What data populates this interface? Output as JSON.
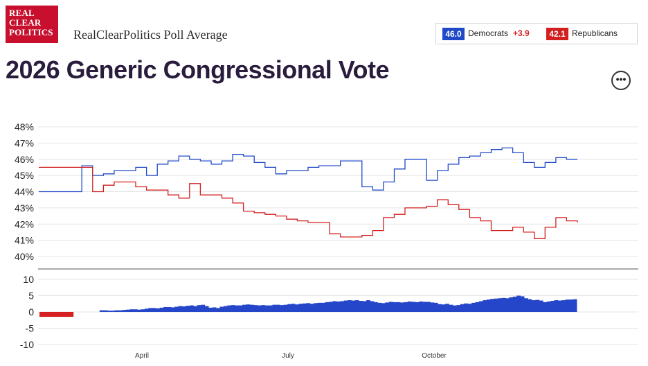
{
  "header": {
    "logo_lines": [
      "REAL",
      "CLEAR",
      "POLITICS"
    ],
    "source_title": "RealClearPolitics Poll Average",
    "main_title": "2026 Generic Congressional Vote",
    "more_button": "•••"
  },
  "legend": {
    "dem_value": "46.0",
    "dem_label": "Democrats",
    "spread": "+3.9",
    "rep_value": "42.1",
    "rep_label": "Republicans"
  },
  "colors": {
    "dem": "#1f49c7",
    "rep": "#d31f1f",
    "spread_positive": "#2546c9",
    "spread_negative": "#d42020"
  },
  "chart_data": [
    {
      "type": "line",
      "ylim": [
        40,
        48
      ],
      "yticks": [
        "40%",
        "41%",
        "42%",
        "43%",
        "44%",
        "45%",
        "46%",
        "47%",
        "48%"
      ],
      "x": [
        0,
        6,
        8,
        10,
        12,
        14,
        16,
        18,
        20,
        22,
        24,
        26,
        28,
        30,
        32,
        34,
        36,
        38,
        40,
        42,
        44,
        46,
        48,
        50,
        52,
        54,
        56,
        58,
        60,
        62,
        64,
        66,
        68,
        70,
        72,
        74,
        76,
        78,
        80,
        82,
        84,
        86,
        88,
        90,
        92,
        94,
        96,
        98,
        100
      ],
      "series": [
        {
          "name": "Democrats",
          "color": "#1f49c7",
          "values": [
            44.0,
            44.0,
            45.6,
            45.0,
            45.1,
            45.3,
            45.3,
            45.5,
            45.0,
            45.7,
            45.9,
            46.2,
            46.0,
            45.9,
            45.7,
            45.9,
            46.3,
            46.2,
            45.8,
            45.5,
            45.1,
            45.3,
            45.3,
            45.5,
            45.6,
            45.6,
            45.9,
            45.9,
            44.3,
            44.1,
            44.6,
            45.4,
            46.0,
            46.0,
            44.7,
            45.3,
            45.7,
            46.1,
            46.2,
            46.4,
            46.6,
            46.7,
            46.4,
            45.8,
            45.5,
            45.8,
            46.1,
            46.0,
            46.0
          ]
        },
        {
          "name": "Republicans",
          "color": "#d31f1f",
          "values": [
            45.5,
            45.5,
            45.5,
            44.0,
            44.4,
            44.6,
            44.6,
            44.3,
            44.1,
            44.1,
            43.8,
            43.6,
            44.5,
            43.8,
            43.8,
            43.6,
            43.3,
            42.8,
            42.7,
            42.6,
            42.5,
            42.3,
            42.2,
            42.1,
            42.1,
            41.4,
            41.2,
            41.2,
            41.3,
            41.6,
            42.4,
            42.6,
            43.0,
            43.0,
            43.1,
            43.5,
            43.2,
            42.9,
            42.4,
            42.2,
            41.6,
            41.6,
            41.8,
            41.5,
            41.1,
            41.8,
            42.4,
            42.2,
            42.1
          ]
        }
      ]
    },
    {
      "type": "bar",
      "ylim": [
        -10,
        10
      ],
      "yticks": [
        "10",
        "5",
        "0",
        "-5",
        "-10"
      ],
      "xticks": [
        "April",
        "July",
        "October"
      ],
      "series": [
        {
          "name": "Spread",
          "values": [
            -1.5,
            -1.5,
            -1.5,
            -1.5,
            -1.5,
            -1.5,
            -1.5,
            -1.5,
            -1.5,
            0,
            0,
            0,
            0,
            0,
            0,
            0,
            0.5,
            0.5,
            0.4,
            0.4,
            0.5,
            0.5,
            0.6,
            0.7,
            0.8,
            0.8,
            0.7,
            0.8,
            1.0,
            1.2,
            1.2,
            1.1,
            1.3,
            1.5,
            1.5,
            1.4,
            1.6,
            1.8,
            1.7,
            1.9,
            2.0,
            1.8,
            2.1,
            2.2,
            1.8,
            1.3,
            1.4,
            1.2,
            1.6,
            1.8,
            2.0,
            2.1,
            2.0,
            2.0,
            2.2,
            2.3,
            2.2,
            2.1,
            2.0,
            2.1,
            2.0,
            2.0,
            2.2,
            2.2,
            2.1,
            2.2,
            2.4,
            2.5,
            2.3,
            2.5,
            2.6,
            2.7,
            2.5,
            2.7,
            2.8,
            2.8,
            3.0,
            3.1,
            3.3,
            3.2,
            3.3,
            3.5,
            3.6,
            3.5,
            3.6,
            3.4,
            3.3,
            3.6,
            3.3,
            3.0,
            2.8,
            2.7,
            2.9,
            3.1,
            3.0,
            3.0,
            2.9,
            3.0,
            3.2,
            3.1,
            3.0,
            3.2,
            3.1,
            3.1,
            2.9,
            2.8,
            2.4,
            2.3,
            2.5,
            2.2,
            2.0,
            2.1,
            2.4,
            2.6,
            2.5,
            2.8,
            3.0,
            3.3,
            3.6,
            3.8,
            4.0,
            4.1,
            4.2,
            4.3,
            4.2,
            4.5,
            4.7,
            5.0,
            4.8,
            4.2,
            3.9,
            3.6,
            3.7,
            3.5,
            3.0,
            3.2,
            3.4,
            3.6,
            3.5,
            3.6,
            3.8,
            3.8,
            3.9
          ]
        }
      ]
    }
  ]
}
